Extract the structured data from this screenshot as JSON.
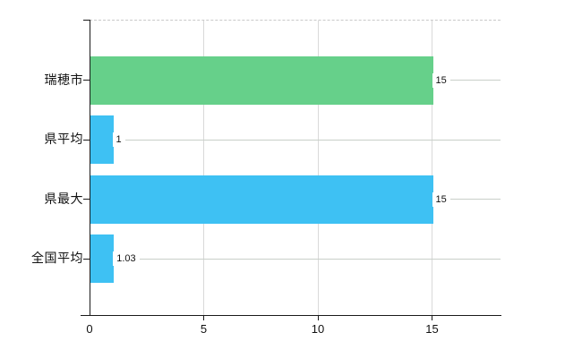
{
  "chart_data": {
    "type": "bar",
    "orientation": "horizontal",
    "title": "",
    "categories": [
      "瑞穂市",
      "県平均",
      "県最大",
      "全国平均"
    ],
    "values": [
      15,
      1,
      15,
      1.03
    ],
    "value_labels": [
      "15",
      "1",
      "15",
      "1.03"
    ],
    "bar_colors": [
      "#66d08a",
      "#3ec1f3",
      "#3ec1f3",
      "#3ec1f3"
    ],
    "x_ticks": [
      0,
      5,
      10,
      15
    ],
    "x_tick_labels": [
      "0",
      "5",
      "10",
      "15"
    ],
    "xlim": [
      0,
      18
    ],
    "ylabel": "",
    "xlabel": "",
    "legend": "none",
    "grid": {
      "vertical_lines": true,
      "category_lines": true,
      "top_border_style": "dashed"
    }
  },
  "colors": {
    "background": "#ffffff",
    "axis": "#1a1a1a",
    "vertical_gridline": "#d9d9d9",
    "category_gridline": "#c9cfc9",
    "top_dashed_border": "#c9c9c9",
    "text": "#111111",
    "green_bar": "#66d08a",
    "blue_bar": "#3ec1f3"
  }
}
